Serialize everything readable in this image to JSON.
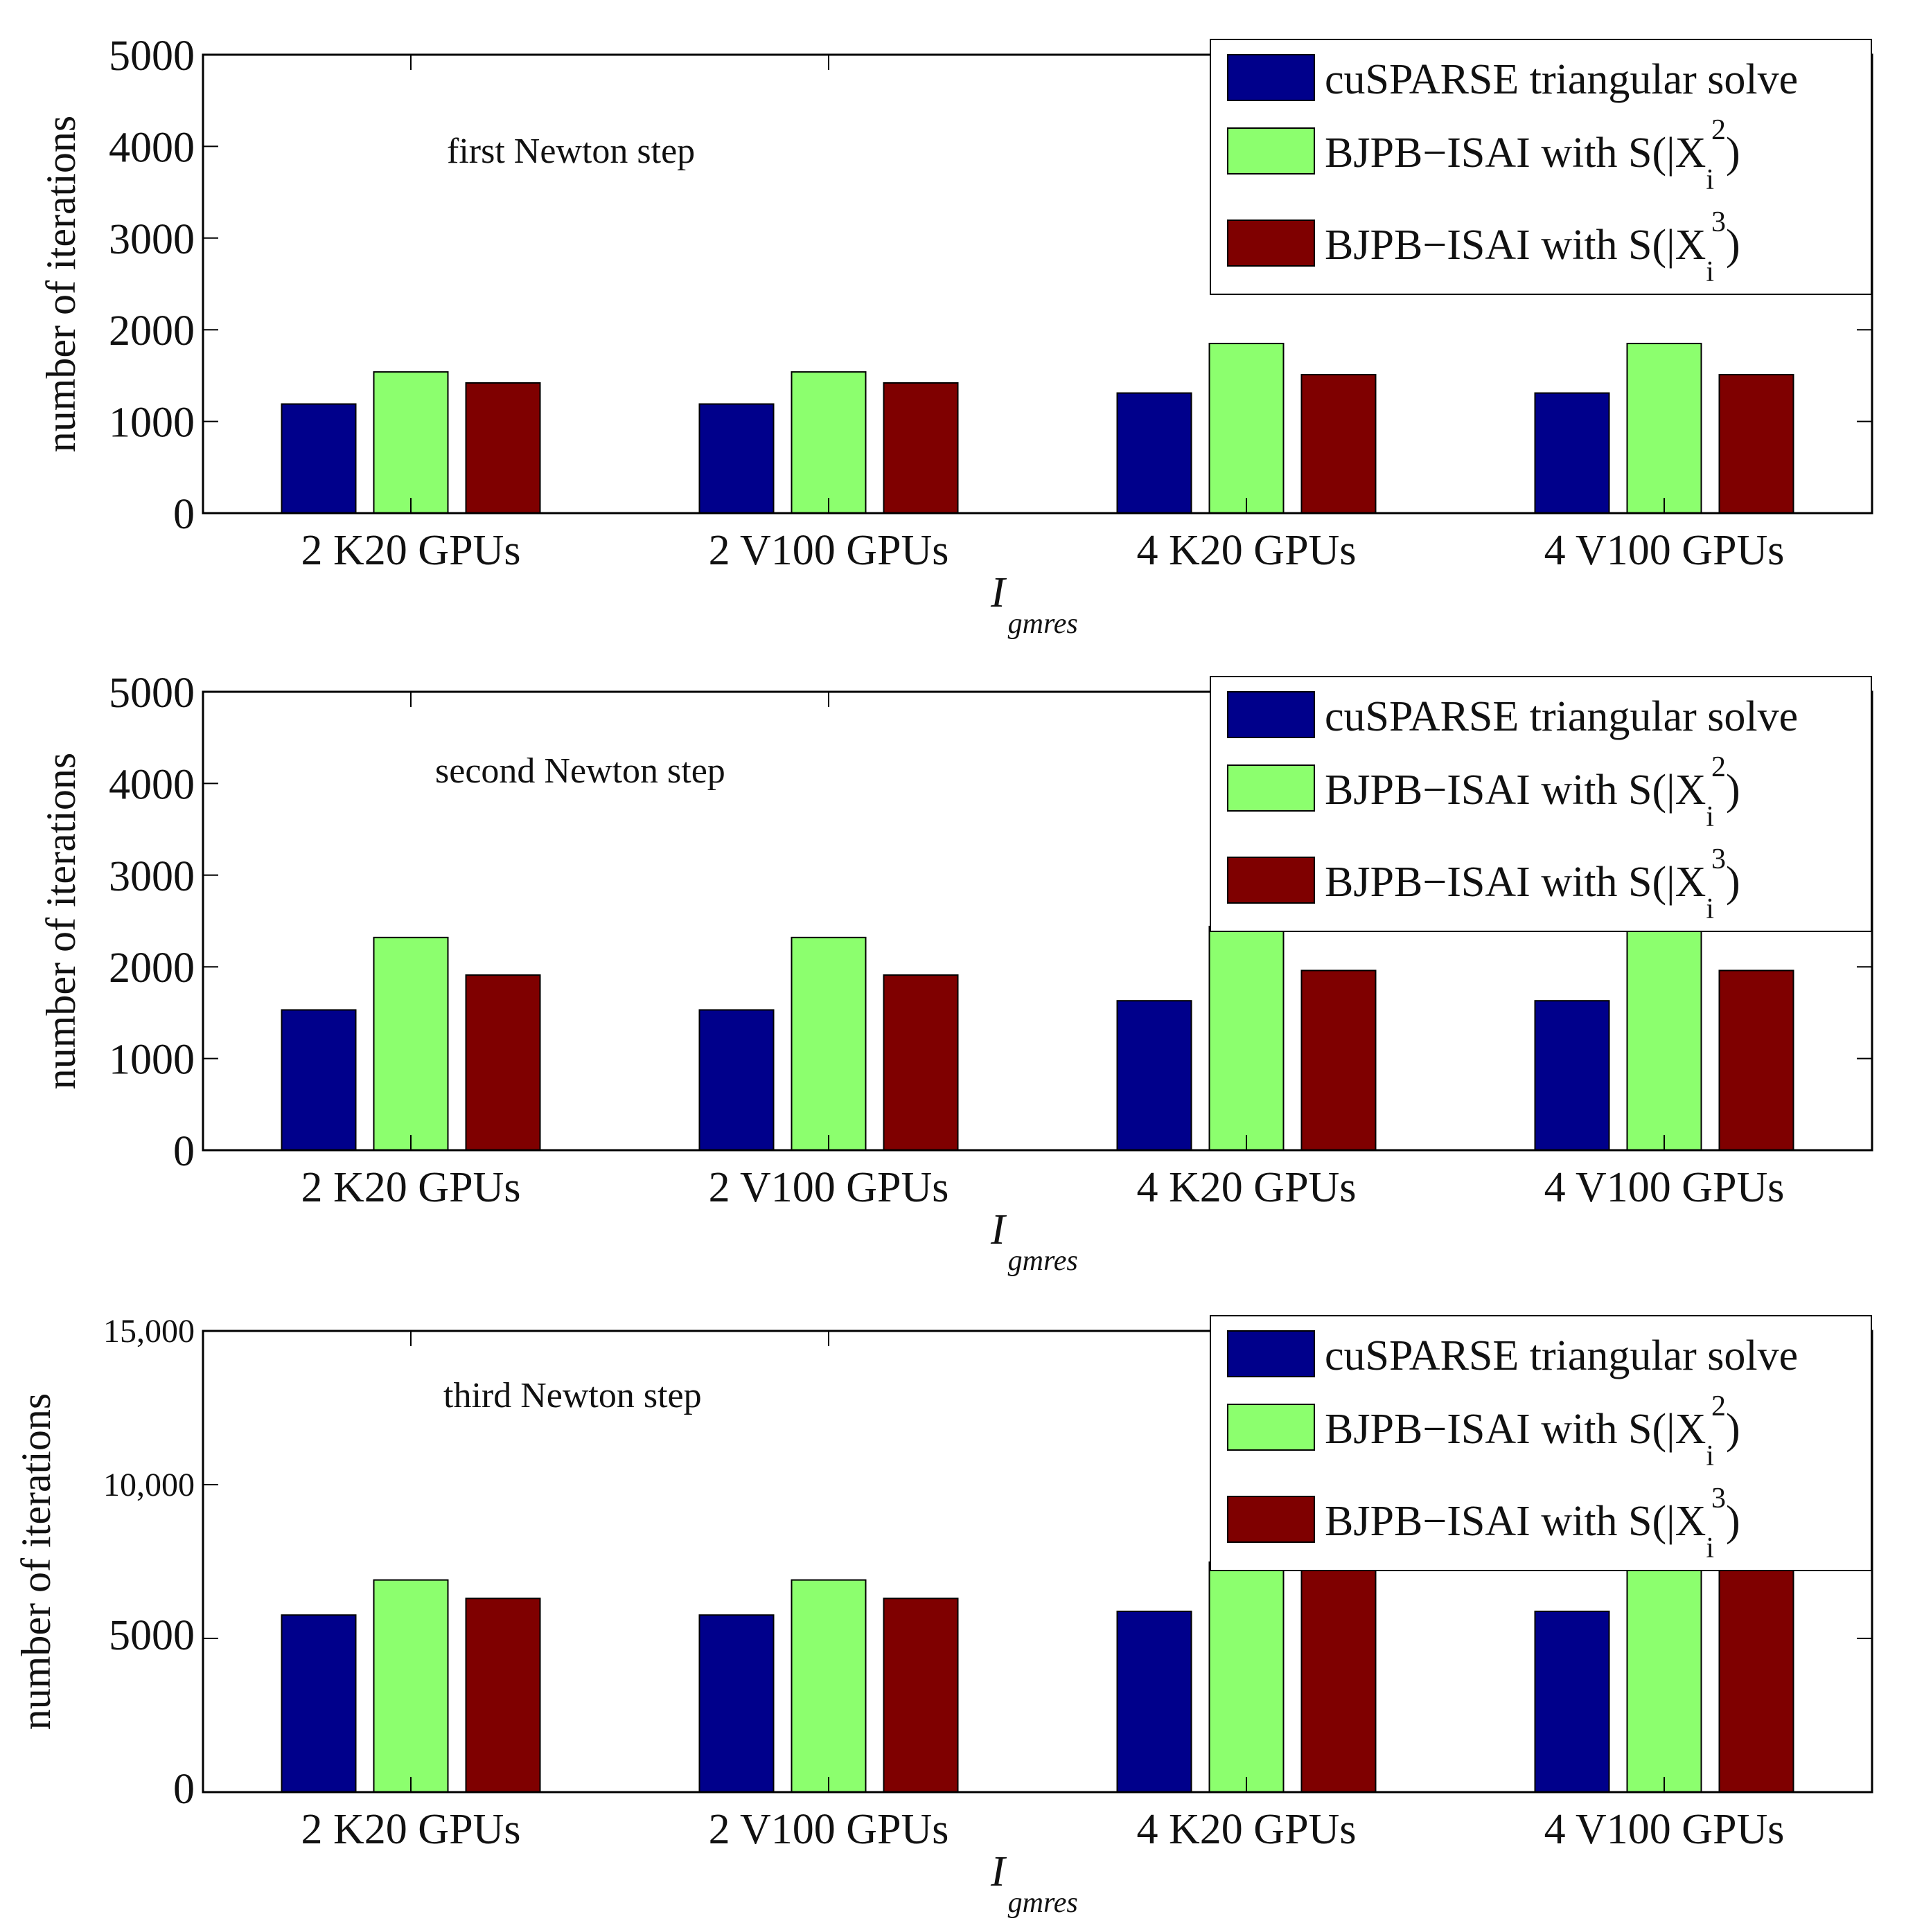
{
  "chart_data": [
    {
      "type": "bar",
      "annotation": "first Newton step",
      "categories": [
        "2 K20 GPUs",
        "2 V100 GPUs",
        "4 K20 GPUs",
        "4 V100 GPUs"
      ],
      "series": [
        {
          "name": "cuSPARSE triangular solve",
          "color": "#00008b",
          "values": [
            1190,
            1190,
            1310,
            1310
          ]
        },
        {
          "name": "BJPB−ISAI with S(|X_i|^2)",
          "color": "#8cff6e",
          "values": [
            1540,
            1540,
            1850,
            1850
          ]
        },
        {
          "name": "BJPB−ISAI with S(|X_i|^3)",
          "color": "#7f0000",
          "values": [
            1420,
            1420,
            1510,
            1510
          ]
        }
      ],
      "yticks": [
        "0",
        "1000",
        "2000",
        "3000",
        "4000",
        "5000"
      ],
      "ytick_values": [
        0,
        1000,
        2000,
        3000,
        4000,
        5000
      ],
      "ylim": [
        0,
        5000
      ],
      "ylabel": "number of iterations",
      "xlabel_main": "I",
      "xlabel_sub": "gmres",
      "legend_loc": "top-right"
    },
    {
      "type": "bar",
      "annotation": "second Newton step",
      "categories": [
        "2 K20 GPUs",
        "2 V100 GPUs",
        "4 K20 GPUs",
        "4 V100 GPUs"
      ],
      "series": [
        {
          "name": "cuSPARSE triangular solve",
          "color": "#00008b",
          "values": [
            1530,
            1530,
            1630,
            1630
          ]
        },
        {
          "name": "BJPB−ISAI with S(|X_i|^2)",
          "color": "#8cff6e",
          "values": [
            2320,
            2320,
            2440,
            2440
          ]
        },
        {
          "name": "BJPB−ISAI with S(|X_i|^3)",
          "color": "#7f0000",
          "values": [
            1910,
            1910,
            1960,
            1960
          ]
        }
      ],
      "yticks": [
        "0",
        "1000",
        "2000",
        "3000",
        "4000",
        "5000"
      ],
      "ytick_values": [
        0,
        1000,
        2000,
        3000,
        4000,
        5000
      ],
      "ylim": [
        0,
        5000
      ],
      "ylabel": "number of iterations",
      "xlabel_main": "I",
      "xlabel_sub": "gmres",
      "legend_loc": "top-right"
    },
    {
      "type": "bar",
      "annotation": "third Newton step",
      "categories": [
        "2 K20 GPUs",
        "2 V100 GPUs",
        "4 K20 GPUs",
        "4 V100 GPUs"
      ],
      "series": [
        {
          "name": "cuSPARSE triangular solve",
          "color": "#00008b",
          "values": [
            5760,
            5760,
            5880,
            5880
          ]
        },
        {
          "name": "BJPB−ISAI with S(|X_i|^2)",
          "color": "#8cff6e",
          "values": [
            6900,
            6900,
            7480,
            7480
          ]
        },
        {
          "name": "BJPB−ISAI with S(|X_i|^3)",
          "color": "#7f0000",
          "values": [
            6300,
            6300,
            7580,
            7580
          ]
        }
      ],
      "yticks": [
        "0",
        "5000",
        "10,000",
        "15,000"
      ],
      "ytick_values": [
        0,
        5000,
        10000,
        15000
      ],
      "ylim": [
        0,
        15000
      ],
      "ylabel": "number of iterations",
      "xlabel_main": "I",
      "xlabel_sub": "gmres",
      "legend_loc": "top-right"
    }
  ],
  "legend": {
    "entries": [
      {
        "prefix": "cuSPARSE triangular solve",
        "sub": "",
        "sup": "",
        "suffix": ""
      },
      {
        "prefix": "BJPB−ISAI with S(|X",
        "sub": "i",
        "sup": "2",
        "suffix": ")"
      },
      {
        "prefix": "BJPB−ISAI with S(|X",
        "sub": "i",
        "sup": "3",
        "suffix": ")"
      }
    ]
  }
}
